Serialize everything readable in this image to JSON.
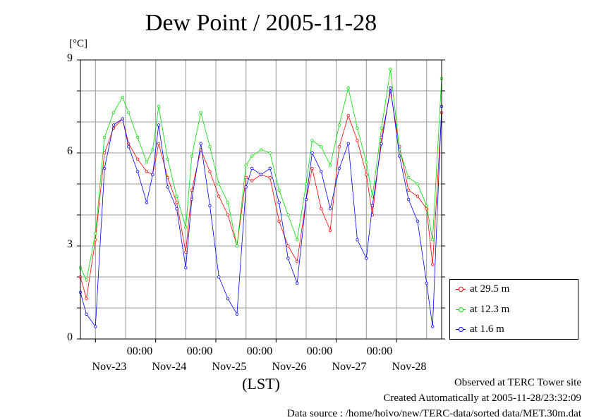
{
  "chart_data": {
    "type": "line",
    "title": "Dew Point / 2005-11-28",
    "unit_label": "[°C]",
    "xlabel": "(LST)",
    "ylim": [
      0,
      9
    ],
    "yticks": [
      "0",
      "3",
      "6",
      "9"
    ],
    "xlim_days": [
      22.75,
      28.75
    ],
    "time_tick_label": "00:00",
    "date_labels": [
      "Nov-23",
      "Nov-24",
      "Nov-25",
      "Nov-26",
      "Nov-27",
      "Nov-28"
    ],
    "grid": true,
    "legend_position": "bottom-right outside",
    "series": [
      {
        "name": "at 29.5 m",
        "color": "#ff0000",
        "x": [
          22.75,
          22.85,
          23.0,
          23.15,
          23.3,
          23.45,
          23.55,
          23.7,
          23.85,
          23.95,
          24.05,
          24.2,
          24.35,
          24.5,
          24.6,
          24.75,
          24.9,
          25.05,
          25.2,
          25.35,
          25.5,
          25.6,
          25.75,
          25.9,
          26.05,
          26.2,
          26.35,
          26.5,
          26.6,
          26.75,
          26.9,
          27.05,
          27.2,
          27.35,
          27.5,
          27.6,
          27.75,
          27.9,
          28.05,
          28.2,
          28.35,
          28.5,
          28.6,
          28.75
        ],
        "y": [
          2.0,
          1.3,
          3.2,
          6.0,
          6.8,
          7.1,
          6.3,
          5.8,
          5.4,
          5.3,
          6.3,
          5.2,
          4.4,
          2.8,
          4.8,
          6.1,
          5.4,
          4.6,
          4.0,
          3.0,
          5.2,
          5.1,
          5.3,
          5.2,
          3.8,
          3.0,
          2.5,
          4.5,
          5.5,
          4.2,
          3.5,
          6.2,
          7.2,
          6.4,
          5.3,
          4.0,
          6.5,
          8.0,
          6.2,
          4.8,
          4.6,
          4.2,
          2.4,
          7.3
        ]
      },
      {
        "name": "at 12.3 m",
        "color": "#00dd00",
        "x": [
          22.75,
          22.85,
          23.0,
          23.15,
          23.3,
          23.45,
          23.55,
          23.7,
          23.85,
          23.95,
          24.05,
          24.2,
          24.35,
          24.5,
          24.6,
          24.75,
          24.9,
          25.05,
          25.2,
          25.35,
          25.5,
          25.6,
          25.75,
          25.9,
          26.05,
          26.2,
          26.35,
          26.5,
          26.6,
          26.75,
          26.9,
          27.05,
          27.2,
          27.35,
          27.5,
          27.6,
          27.75,
          27.9,
          28.05,
          28.2,
          28.35,
          28.5,
          28.6,
          28.75
        ],
        "y": [
          2.3,
          1.9,
          3.4,
          6.5,
          7.3,
          7.8,
          7.3,
          6.5,
          5.7,
          6.1,
          7.5,
          5.8,
          4.6,
          3.6,
          5.9,
          7.3,
          6.2,
          5.0,
          4.4,
          3.0,
          5.6,
          5.9,
          6.1,
          6.0,
          4.8,
          4.0,
          3.2,
          5.0,
          6.4,
          6.2,
          5.6,
          6.9,
          8.1,
          6.8,
          5.7,
          4.6,
          6.8,
          8.7,
          6.1,
          5.2,
          5.0,
          4.3,
          3.2,
          8.4
        ]
      },
      {
        "name": "at 1.6 m",
        "color": "#0000ff",
        "x": [
          22.75,
          22.85,
          23.0,
          23.15,
          23.3,
          23.45,
          23.55,
          23.7,
          23.85,
          23.95,
          24.05,
          24.2,
          24.35,
          24.5,
          24.6,
          24.75,
          24.9,
          25.05,
          25.2,
          25.35,
          25.5,
          25.6,
          25.75,
          25.9,
          26.05,
          26.2,
          26.35,
          26.5,
          26.6,
          26.75,
          26.9,
          27.05,
          27.2,
          27.35,
          27.5,
          27.6,
          27.75,
          27.9,
          28.05,
          28.2,
          28.35,
          28.5,
          28.6,
          28.75
        ],
        "y": [
          1.5,
          0.8,
          0.4,
          5.5,
          6.9,
          7.1,
          6.2,
          5.4,
          4.4,
          5.3,
          6.9,
          4.9,
          4.2,
          2.3,
          4.5,
          6.3,
          4.3,
          2.0,
          1.3,
          0.8,
          4.9,
          5.5,
          5.3,
          5.5,
          4.4,
          2.6,
          1.8,
          4.5,
          6.0,
          5.4,
          4.2,
          5.5,
          6.3,
          3.2,
          2.6,
          4.3,
          6.3,
          8.1,
          5.9,
          4.5,
          3.8,
          1.8,
          0.4,
          7.5
        ]
      }
    ]
  },
  "footer": {
    "line1": "Observed at TERC Tower site",
    "line2": "Created Automatically at 2005-11-28/23:32:09",
    "line3": "Data source : /home/hoivo/new/TERC-data/sorted  data/MET.30m.dat"
  }
}
